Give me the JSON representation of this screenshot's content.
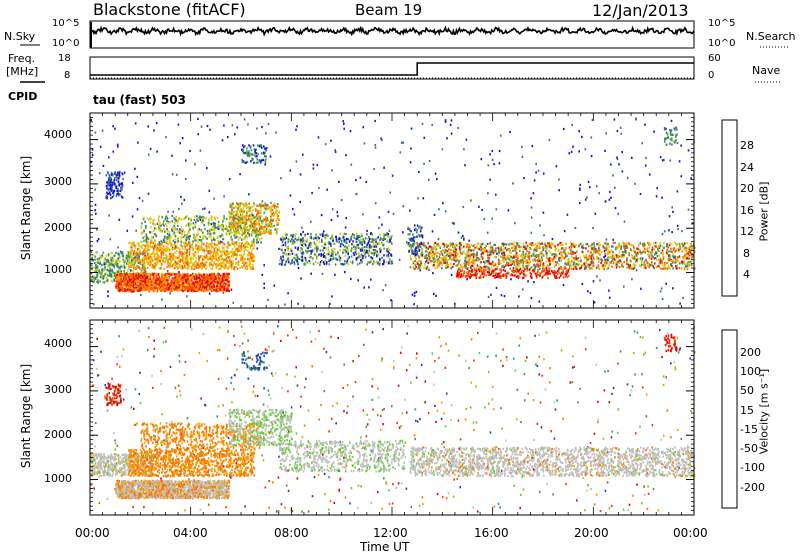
{
  "header": {
    "site": "Blackstone (fitACF)",
    "beam": "Beam 19",
    "date": "12/Jan/2013"
  },
  "strip_labels": {
    "nsky": "N.Sky",
    "nsky_ticks": [
      "10^5",
      "10^0"
    ],
    "nsearch": "N.Search",
    "nsearch_ticks": [
      "10^5",
      "10^0"
    ],
    "freq_top": "Freq.",
    "freq_unit": "[MHz]",
    "freq_ticks": [
      "18",
      "8"
    ],
    "nave": "Nave",
    "nave_ticks": [
      "60",
      "0"
    ],
    "cpid": "CPID",
    "cpid_text": "tau (fast) 503"
  },
  "chart_data": [
    {
      "type": "heatmap",
      "name": "power",
      "ylabel": "Slant Range [km]",
      "y_ticks": [
        1000,
        2000,
        3000,
        4000
      ],
      "ylim": [
        200,
        4600
      ],
      "xlim": [
        0,
        24
      ],
      "colorbar_label": "Power [dB]",
      "colorbar_ticks": [
        "28",
        "24",
        "20",
        "16",
        "12",
        "8",
        "4"
      ],
      "colorbar_colors": [
        "#e80000",
        "#ff5a00",
        "#ff9a00",
        "#f0c000",
        "#c8d020",
        "#40a040",
        "#407080",
        "#1010e0"
      ]
    },
    {
      "type": "heatmap",
      "name": "velocity",
      "ylabel": "Slant Range [km]",
      "y_ticks": [
        1000,
        2000,
        3000,
        4000
      ],
      "ylim": [
        200,
        4600
      ],
      "xlim": [
        0,
        24
      ],
      "xlabel": "Time UT",
      "x_ticks": [
        "00:00",
        "04:00",
        "08:00",
        "12:00",
        "16:00",
        "20:00",
        "00:00"
      ],
      "colorbar_label": "Velocity [m s⁻¹]",
      "colorbar_ticks": [
        "200",
        "100",
        "50",
        "15",
        "-15",
        "-50",
        "-100",
        "-200"
      ],
      "colorbar_colors": [
        "#2040b0",
        "#3a9a50",
        "#66cc33",
        "#bfbfbf",
        "#f0a000",
        "#ff7000",
        "#ff3000",
        "#e00000"
      ]
    }
  ],
  "strips": {
    "nsky_series": [
      0.8,
      0.75,
      0.8,
      0.7,
      0.65,
      0.7,
      0.75,
      0.7,
      0.72,
      0.68,
      0.7,
      0.75,
      0.72,
      0.7,
      0.68,
      0.7,
      0.72,
      0.74,
      0.7,
      0.72,
      0.75,
      0.7,
      0.72,
      0.75,
      0.78
    ],
    "freq_steps": [
      {
        "t0": 0,
        "t1": 13,
        "value": 10.5
      },
      {
        "t0": 13,
        "t1": 24,
        "value": 12.5
      }
    ]
  }
}
